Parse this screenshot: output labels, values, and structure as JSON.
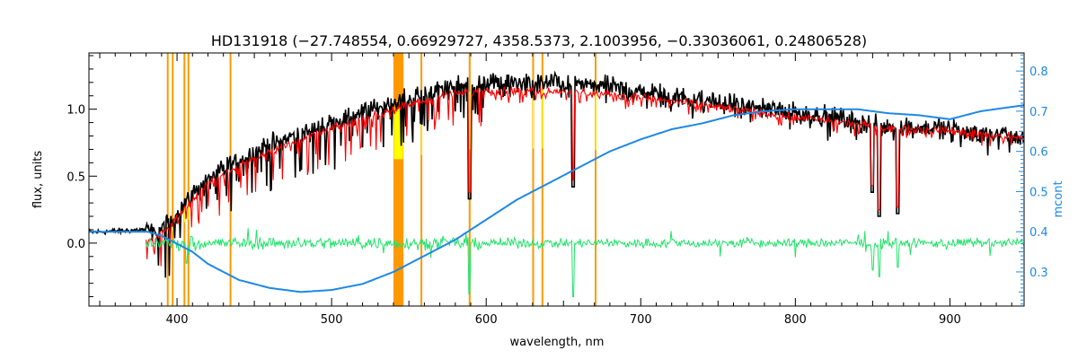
{
  "chart_data": {
    "type": "line",
    "title": "HD131918    (−27.748554, 0.66929727, 4358.5373, 2.1003956, −0.33036061, 0.24806528)",
    "xlabel": "wavelength, nm",
    "ylabel": "flux, units",
    "y2label": "mcont",
    "xlim": [
      343,
      948
    ],
    "ylim": [
      -0.47,
      1.42
    ],
    "y2lim": [
      0.215,
      0.845
    ],
    "x_ticks": [
      400,
      500,
      600,
      700,
      800,
      900
    ],
    "y_ticks": [
      0.0,
      0.5,
      1.0
    ],
    "y_tick_labels": [
      "0.0",
      "0.5",
      "1.0"
    ],
    "y2_ticks": [
      0.3,
      0.4,
      0.5,
      0.6,
      0.7,
      0.8
    ],
    "grid": false,
    "colors": {
      "observed": "#000000",
      "model": "#ff0000",
      "continuum": "#1e88e5",
      "residual": "#22e36a",
      "masked_band": "#ff9900",
      "masked_fill": "#ffff00",
      "y2_axis": "#1e88e5"
    },
    "masked_bands": [
      [
        393.4,
        394.0
      ],
      [
        396.6,
        397.2
      ],
      [
        404.2,
        404.8
      ],
      [
        406.8,
        407.4
      ],
      [
        434.0,
        434.6
      ],
      [
        540.0,
        546.5
      ],
      [
        557.5,
        558.1
      ],
      [
        588.7,
        589.9
      ],
      [
        629.8,
        630.4
      ],
      [
        635.8,
        636.4
      ],
      [
        670.2,
        671.0
      ]
    ],
    "series": [
      {
        "role": "observed",
        "x": [
          343,
          360,
          378,
          385,
          395,
          405,
          420,
          440,
          460,
          480,
          500,
          520,
          540,
          560,
          580,
          600,
          620,
          640,
          660,
          680,
          700,
          720,
          740,
          760,
          780,
          800,
          820,
          840,
          860,
          880,
          900,
          920,
          948
        ],
        "values": [
          0.08,
          0.09,
          0.1,
          0.08,
          0.15,
          0.3,
          0.48,
          0.63,
          0.74,
          0.82,
          0.9,
          0.98,
          1.05,
          1.12,
          1.18,
          1.2,
          1.2,
          1.2,
          1.19,
          1.17,
          1.14,
          1.11,
          1.07,
          1.04,
          1.01,
          0.98,
          0.95,
          0.91,
          0.88,
          0.87,
          0.86,
          0.83,
          0.79
        ]
      },
      {
        "role": "model",
        "x": [
          380,
          385,
          395,
          405,
          420,
          440,
          460,
          480,
          500,
          520,
          540,
          560,
          580,
          600,
          620,
          640,
          660,
          680,
          700,
          720,
          740,
          760,
          780,
          800,
          820,
          840,
          860,
          880,
          900,
          920,
          948
        ],
        "values": [
          0.02,
          0.04,
          0.12,
          0.26,
          0.44,
          0.58,
          0.69,
          0.77,
          0.85,
          0.93,
          1.0,
          1.07,
          1.12,
          1.14,
          1.14,
          1.14,
          1.13,
          1.11,
          1.09,
          1.06,
          1.03,
          1.0,
          0.97,
          0.94,
          0.92,
          0.89,
          0.86,
          0.85,
          0.84,
          0.82,
          0.78
        ]
      },
      {
        "role": "continuum",
        "axis": "y2",
        "x": [
          343,
          370,
          381,
          390,
          400,
          410,
          420,
          440,
          460,
          480,
          500,
          520,
          540,
          560,
          580,
          600,
          620,
          640,
          660,
          680,
          700,
          720,
          740,
          760,
          780,
          800,
          820,
          840,
          860,
          880,
          900,
          920,
          948
        ],
        "values": [
          0.4,
          0.4,
          0.4,
          0.39,
          0.37,
          0.35,
          0.32,
          0.28,
          0.26,
          0.25,
          0.255,
          0.27,
          0.3,
          0.34,
          0.38,
          0.43,
          0.48,
          0.52,
          0.56,
          0.6,
          0.63,
          0.655,
          0.67,
          0.69,
          0.7,
          0.705,
          0.705,
          0.705,
          0.695,
          0.69,
          0.68,
          0.7,
          0.715
        ]
      },
      {
        "role": "residual",
        "x": [
          380,
          948
        ],
        "values": [
          0.0,
          0.0
        ]
      }
    ],
    "deep_lines": [
      [
        589.3,
        0.33
      ],
      [
        656.3,
        0.42
      ],
      [
        849.8,
        0.38
      ],
      [
        854.2,
        0.2
      ],
      [
        866.2,
        0.22
      ]
    ],
    "residual_spikes": [
      [
        589.3,
        -0.38
      ],
      [
        656.3,
        -0.4
      ],
      [
        850.0,
        -0.2
      ],
      [
        854.2,
        -0.25
      ],
      [
        866.2,
        -0.18
      ],
      [
        406.0,
        -0.15
      ]
    ]
  }
}
